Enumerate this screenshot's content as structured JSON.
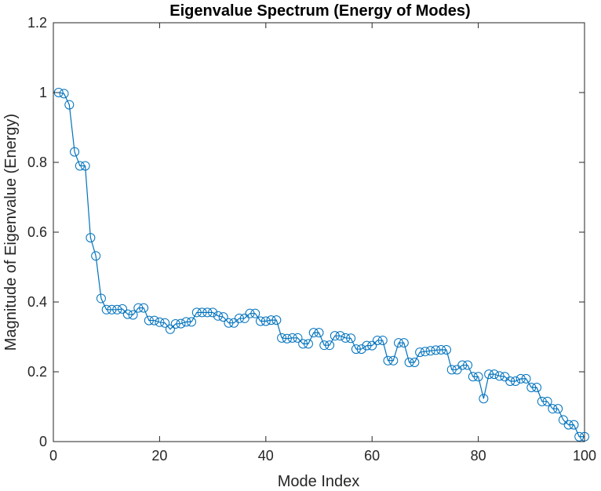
{
  "chart_data": {
    "type": "line",
    "title": "Eigenvalue Spectrum (Energy of Modes)",
    "xlabel": "Mode Index",
    "ylabel": "Magnitude of Eigenvalue (Energy)",
    "xlim": [
      0,
      100
    ],
    "ylim": [
      0,
      1.2
    ],
    "xticks": [
      0,
      20,
      40,
      60,
      80,
      100
    ],
    "yticks": [
      0,
      0.2,
      0.4,
      0.6,
      0.8,
      1,
      1.2
    ],
    "xtick_labels": [
      "0",
      "20",
      "40",
      "60",
      "80",
      "100"
    ],
    "ytick_labels": [
      "0",
      "0.2",
      "0.4",
      "0.6",
      "0.8",
      "1",
      "1.2"
    ],
    "grid": false,
    "marker": "circle",
    "series_color": "#0072BD",
    "x": [
      1,
      2,
      3,
      4,
      5,
      6,
      7,
      8,
      9,
      10,
      11,
      12,
      13,
      14,
      15,
      16,
      17,
      18,
      19,
      20,
      21,
      22,
      23,
      24,
      25,
      26,
      27,
      28,
      29,
      30,
      31,
      32,
      33,
      34,
      35,
      36,
      37,
      38,
      39,
      40,
      41,
      42,
      43,
      44,
      45,
      46,
      47,
      48,
      49,
      50,
      51,
      52,
      53,
      54,
      55,
      56,
      57,
      58,
      59,
      60,
      61,
      62,
      63,
      64,
      65,
      66,
      67,
      68,
      69,
      70,
      71,
      72,
      73,
      74,
      75,
      76,
      77,
      78,
      79,
      80,
      81,
      82,
      83,
      84,
      85,
      86,
      87,
      88,
      89,
      90,
      91,
      92,
      93,
      94,
      95,
      96,
      97,
      98,
      99,
      100
    ],
    "y": [
      1.0,
      0.997,
      0.965,
      0.83,
      0.79,
      0.79,
      0.584,
      0.532,
      0.41,
      0.378,
      0.378,
      0.378,
      0.38,
      0.365,
      0.363,
      0.383,
      0.383,
      0.347,
      0.347,
      0.342,
      0.34,
      0.322,
      0.337,
      0.338,
      0.343,
      0.343,
      0.37,
      0.37,
      0.37,
      0.37,
      0.36,
      0.357,
      0.34,
      0.34,
      0.353,
      0.353,
      0.367,
      0.367,
      0.345,
      0.345,
      0.348,
      0.348,
      0.297,
      0.295,
      0.297,
      0.297,
      0.28,
      0.28,
      0.312,
      0.312,
      0.276,
      0.276,
      0.303,
      0.303,
      0.297,
      0.296,
      0.265,
      0.265,
      0.275,
      0.275,
      0.29,
      0.29,
      0.232,
      0.232,
      0.283,
      0.283,
      0.227,
      0.227,
      0.256,
      0.258,
      0.26,
      0.262,
      0.263,
      0.263,
      0.206,
      0.206,
      0.219,
      0.219,
      0.186,
      0.186,
      0.123,
      0.193,
      0.193,
      0.188,
      0.186,
      0.173,
      0.173,
      0.18,
      0.18,
      0.155,
      0.155,
      0.115,
      0.115,
      0.094,
      0.094,
      0.062,
      0.048,
      0.048,
      0.014,
      0.014
    ]
  }
}
